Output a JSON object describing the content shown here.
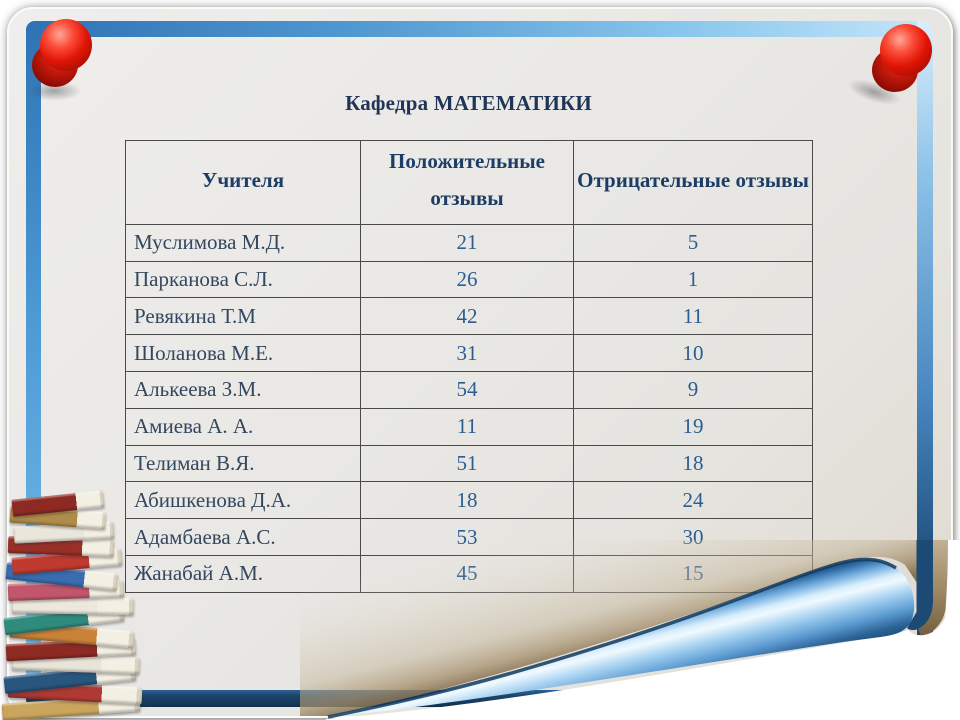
{
  "slide": {
    "title": "Кафедра МАТЕМАТИКИ"
  },
  "table": {
    "headers": [
      "Учителя",
      "Положительные отзывы",
      "Отрицательные отзывы"
    ],
    "rows": [
      [
        "Муслимова М.Д.",
        "21",
        "5"
      ],
      [
        "Парканова С.Л.",
        "26",
        "1"
      ],
      [
        "Ревякина Т.М",
        "42",
        "11"
      ],
      [
        "Шоланова М.Е.",
        "31",
        "10"
      ],
      [
        "Алькеева З.М.",
        "54",
        "9"
      ],
      [
        "Амиева А. А.",
        "11",
        "19"
      ],
      [
        "Телиман В.Я.",
        "51",
        "18"
      ],
      [
        "Абишкенова Д.А.",
        "18",
        "24"
      ],
      [
        "Адамбаева А.С.",
        "53",
        "30"
      ],
      [
        "Жанабай А.М.",
        "45",
        "15"
      ]
    ]
  },
  "decor": {
    "accent_blue": "#2e73b4",
    "accent_blue_light": "#9fd0f0",
    "accent_navy": "#17426b",
    "pushpin_red": "#e01505",
    "curl_blue": "#5b9bd5",
    "paper_gray": "#e9e8e5",
    "title_navy": "#1f3456",
    "book_palette": [
      "#c9a55d",
      "#b03a33",
      "#28567e",
      "#e8e4d8",
      "#8e2a24",
      "#c98339",
      "#2f8c7d",
      "#ece8dc",
      "#c2566b",
      "#3a6cb0",
      "#c03a30",
      "#993028",
      "#eae6da",
      "#b08c4a",
      "#8e2a24"
    ]
  },
  "icons": {
    "pushpin_top_left": "pushpin",
    "pushpin_top_right": "pushpin",
    "books_stack": "books-stack",
    "page_curl": "page-curl"
  }
}
